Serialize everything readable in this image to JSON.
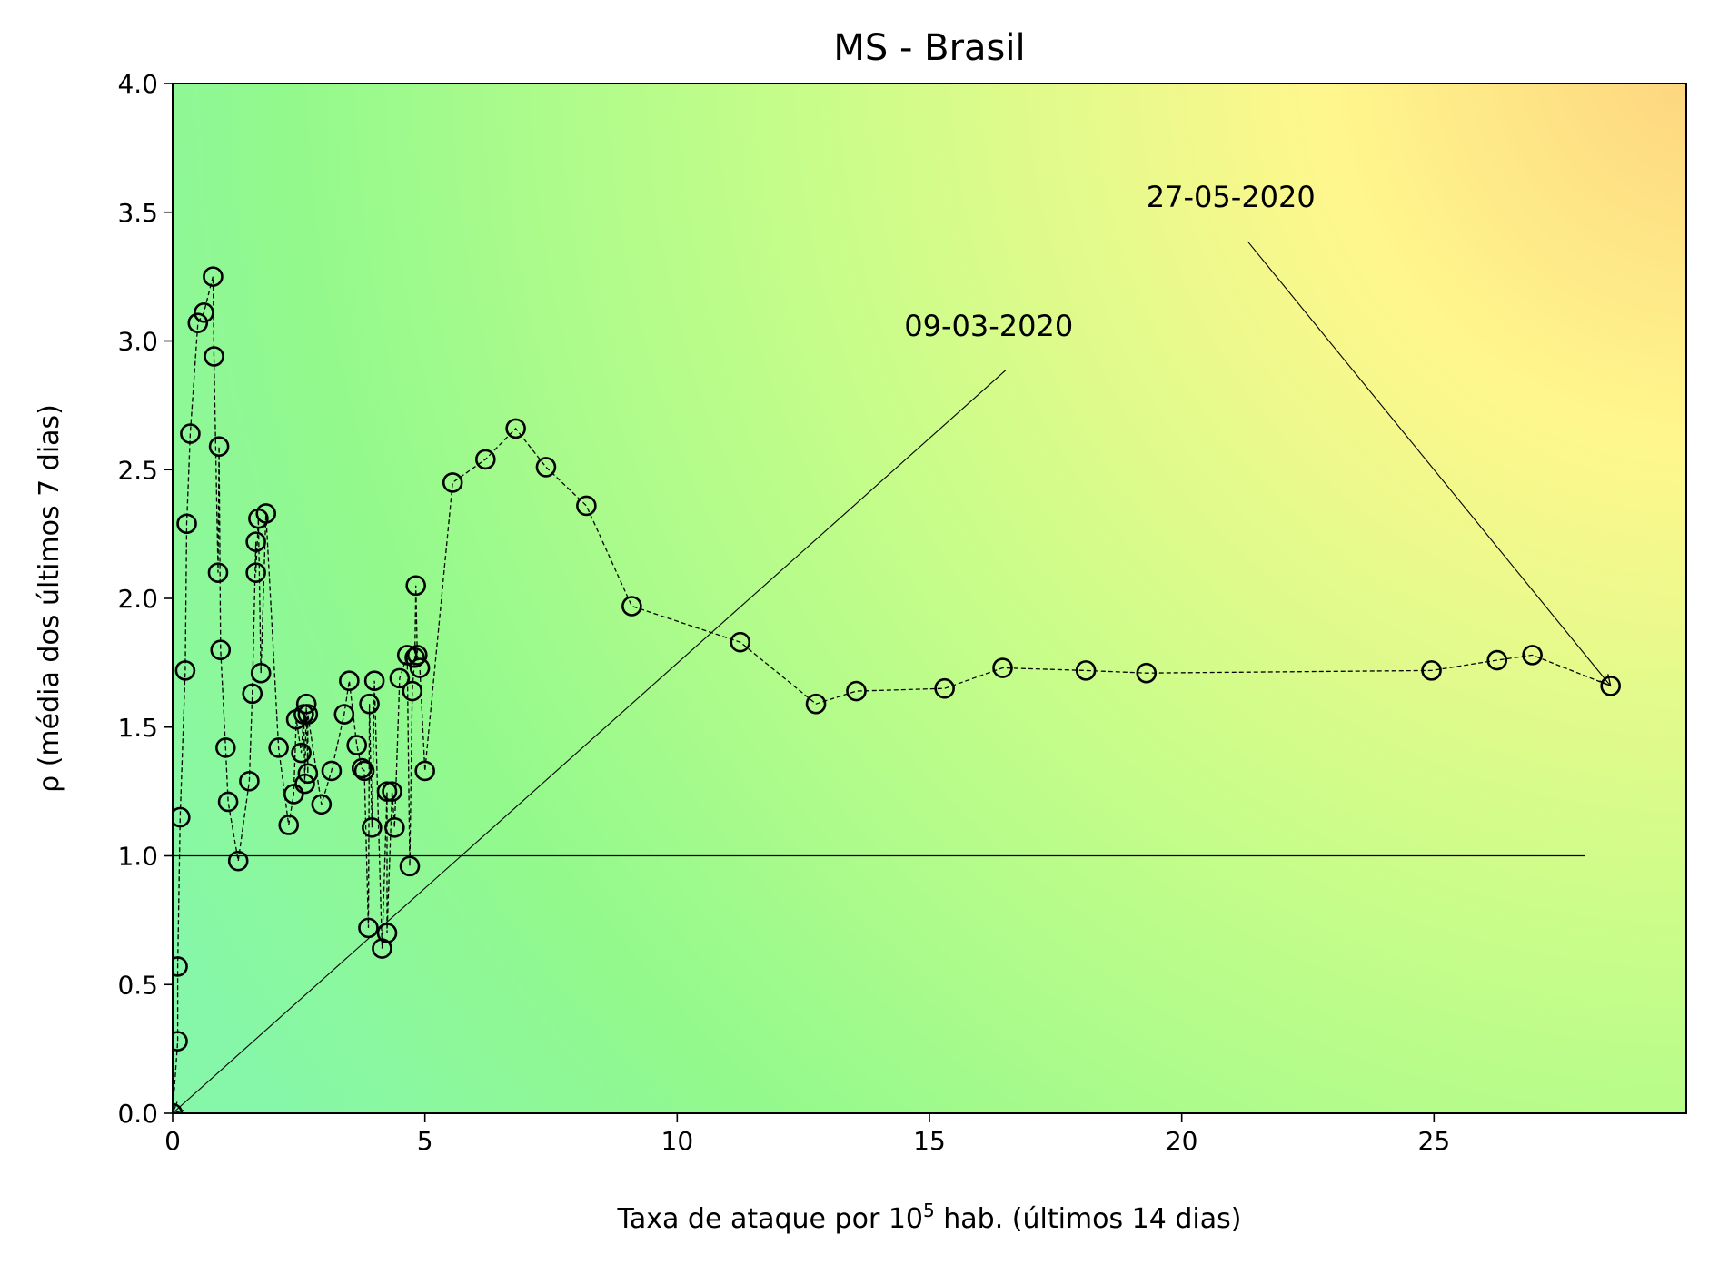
{
  "chart_data": {
    "type": "scatter",
    "title": "MS - Brasil",
    "xlabel": "Taxa de ataque por 10⁵ hab. (últimos 14 dias)",
    "ylabel": "ρ (média dos últimos 7 dias)",
    "xlim": [
      0,
      30
    ],
    "ylim": [
      0,
      4.0
    ],
    "x_ticks": [
      "0",
      "5",
      "10",
      "15",
      "20",
      "25"
    ],
    "y_ticks": [
      "0.0",
      "0.5",
      "1.0",
      "1.5",
      "2.0",
      "2.5",
      "3.0",
      "3.5",
      "4.0"
    ],
    "grid": false,
    "background": "gradient from green (low x, low rho) to yellow/orange (high x, high rho)",
    "reference_line": {
      "y": 1.0,
      "x_range": [
        0,
        28
      ]
    },
    "series": [
      {
        "marker": "open circle",
        "line": "dashed",
        "x": [
          0.0,
          0.1,
          0.1,
          0.15,
          0.25,
          0.28,
          0.35,
          0.5,
          0.62,
          0.8,
          0.82,
          0.9,
          0.92,
          0.95,
          1.05,
          1.1,
          1.3,
          1.52,
          1.58,
          1.65,
          1.65,
          1.7,
          1.75,
          1.85,
          2.1,
          2.3,
          2.4,
          2.45,
          2.55,
          2.6,
          2.62,
          2.65,
          2.68,
          2.68,
          2.95,
          3.15,
          3.4,
          3.5,
          3.65,
          3.75,
          3.8,
          3.88,
          3.9,
          3.95,
          4.0,
          4.15,
          4.25,
          4.25,
          4.35,
          4.4,
          4.5,
          4.65,
          4.7,
          4.75,
          4.8,
          4.82,
          4.85,
          4.9,
          5.0,
          5.55,
          6.2,
          6.8,
          7.4,
          8.2,
          9.1,
          11.25,
          12.75,
          13.55,
          15.3,
          16.45,
          18.1,
          19.3,
          24.95,
          26.25,
          26.95,
          28.5
        ],
        "y": [
          0.0,
          0.28,
          0.57,
          1.15,
          1.72,
          2.29,
          2.64,
          3.07,
          3.11,
          3.25,
          2.94,
          2.1,
          2.59,
          1.8,
          1.42,
          1.21,
          0.98,
          1.29,
          1.63,
          2.22,
          2.1,
          2.31,
          1.71,
          2.33,
          1.42,
          1.12,
          1.24,
          1.53,
          1.4,
          1.55,
          1.28,
          1.59,
          1.32,
          1.55,
          1.2,
          1.33,
          1.55,
          1.68,
          1.43,
          1.34,
          1.33,
          0.72,
          1.59,
          1.11,
          1.68,
          0.64,
          1.25,
          0.7,
          1.25,
          1.11,
          1.69,
          1.78,
          0.96,
          1.64,
          1.77,
          2.05,
          1.78,
          1.73,
          1.33,
          2.45,
          2.54,
          2.66,
          2.51,
          2.36,
          1.97,
          1.83,
          1.59,
          1.64,
          1.65,
          1.73,
          1.72,
          1.71,
          1.72,
          1.76,
          1.78,
          1.66
        ]
      }
    ],
    "annotations": [
      {
        "text": "09-03-2020",
        "text_at": [
          14.5,
          3.02
        ],
        "points_to": [
          0.0,
          0.0
        ]
      },
      {
        "text": "27-05-2020",
        "text_at": [
          19.3,
          3.52
        ],
        "points_to": [
          28.5,
          1.66
        ]
      }
    ]
  }
}
